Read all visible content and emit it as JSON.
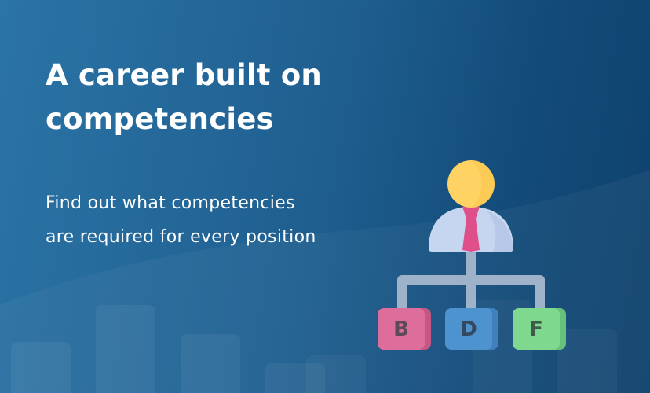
{
  "banner": {
    "headline_line1": "A career built on",
    "headline_line2": "competencies",
    "subline_line1": "Find out what competencies",
    "subline_line2": "are required for every position"
  },
  "org_chart": {
    "icon": "manager-org-chart-icon",
    "boxes": [
      {
        "letter": "B",
        "color": "#dd6e9b"
      },
      {
        "letter": "D",
        "color": "#4d93d0"
      },
      {
        "letter": "F",
        "color": "#7ed98f"
      }
    ]
  },
  "colors": {
    "background_start": "#2b74a6",
    "background_end": "#0f426d",
    "head": "#ffd264",
    "shirt": "#c7d6f0",
    "tie": "#df4f8a",
    "connector": "#9eb3c9"
  }
}
